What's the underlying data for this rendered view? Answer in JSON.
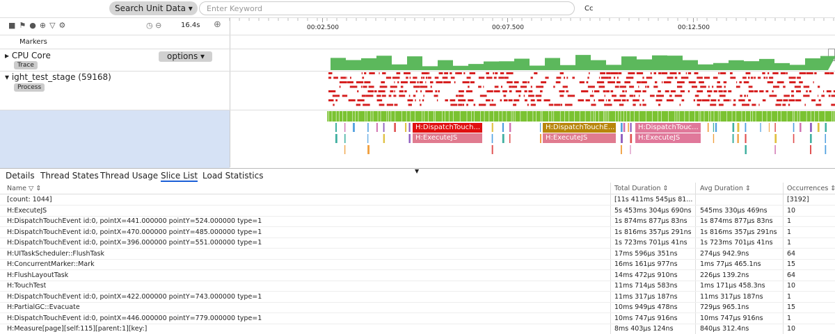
{
  "toolbar": {
    "search_button": "Search Unit Data",
    "search_placeholder": "Enter Keyword",
    "case_toggle": "Cc"
  },
  "timeline": {
    "duration": "16.4s",
    "ticks": [
      "00:02.500",
      "00:07.500",
      "00:12.500"
    ]
  },
  "rows": {
    "markers": "Markers",
    "cpu": {
      "name": "CPU Core",
      "tag": "Trace",
      "options": "options"
    },
    "process": {
      "name": "ight_test_stage (59168)",
      "tag": "Process"
    }
  },
  "slices": [
    "H:DispatchTouch...",
    "H:ExecuteJS",
    "H:DispatchTouchE...",
    "H:ExecuteJS",
    "H:DispatchTouc...",
    "H:ExecuteJS"
  ],
  "tabs": [
    "Details",
    "Thread States",
    "Thread Usage",
    "Slice List",
    "Load Statistics"
  ],
  "table": {
    "columns": [
      "Name",
      "Total Duration",
      "Avg Duration",
      "Occurrences"
    ],
    "rows": [
      [
        "[count: 1044]",
        "[11s 411ms 545μs 81...",
        null,
        "[3192]"
      ],
      [
        "H:ExecuteJS",
        "5s 453ms 304μs 690ns",
        "545ms 330μs 469ns",
        "10"
      ],
      [
        "H:DispatchTouchEvent id:0, pointX=441.000000 pointY=524.000000 type=1",
        "1s 874ms 877μs 83ns",
        "1s 874ms 877μs 83ns",
        "1"
      ],
      [
        "H:DispatchTouchEvent id:0, pointX=470.000000 pointY=485.000000 type=1",
        "1s 816ms 357μs 291ns",
        "1s 816ms 357μs 291ns",
        "1"
      ],
      [
        "H:DispatchTouchEvent id:0, pointX=396.000000 pointY=551.000000 type=1",
        "1s 723ms 701μs 41ns",
        "1s 723ms 701μs 41ns",
        "1"
      ],
      [
        "H:UITaskScheduler::FlushTask",
        "17ms 596μs 351ns",
        "274μs 942.9ns",
        "64"
      ],
      [
        "H:ConcurrentMarker::Mark",
        "16ms 161μs 977ns",
        "1ms 77μs 465.1ns",
        "15"
      ],
      [
        "H:FlushLayoutTask",
        "14ms 472μs 910ns",
        "226μs 139.2ns",
        "64"
      ],
      [
        "H:TouchTest",
        "11ms 714μs 583ns",
        "1ms 171μs 458.3ns",
        "10"
      ],
      [
        "H:DispatchTouchEvent id:0, pointX=422.000000 pointY=743.000000 type=1",
        "11ms 317μs 187ns",
        "11ms 317μs 187ns",
        "1"
      ],
      [
        "H:PartialGC::Evacuate",
        "10ms 949μs 478ns",
        "729μs 965.1ns",
        "15"
      ],
      [
        "H:DispatchTouchEvent id:0, pointX=446.000000 pointY=779.000000 type=1",
        "10ms 747μs 916ns",
        "10ms 747μs 916ns",
        "1"
      ],
      [
        "H:Measure[page][self:115][parent:1][key:]",
        "8ms 403μs 124ns",
        "840μs 312.4ns",
        "10"
      ]
    ]
  }
}
